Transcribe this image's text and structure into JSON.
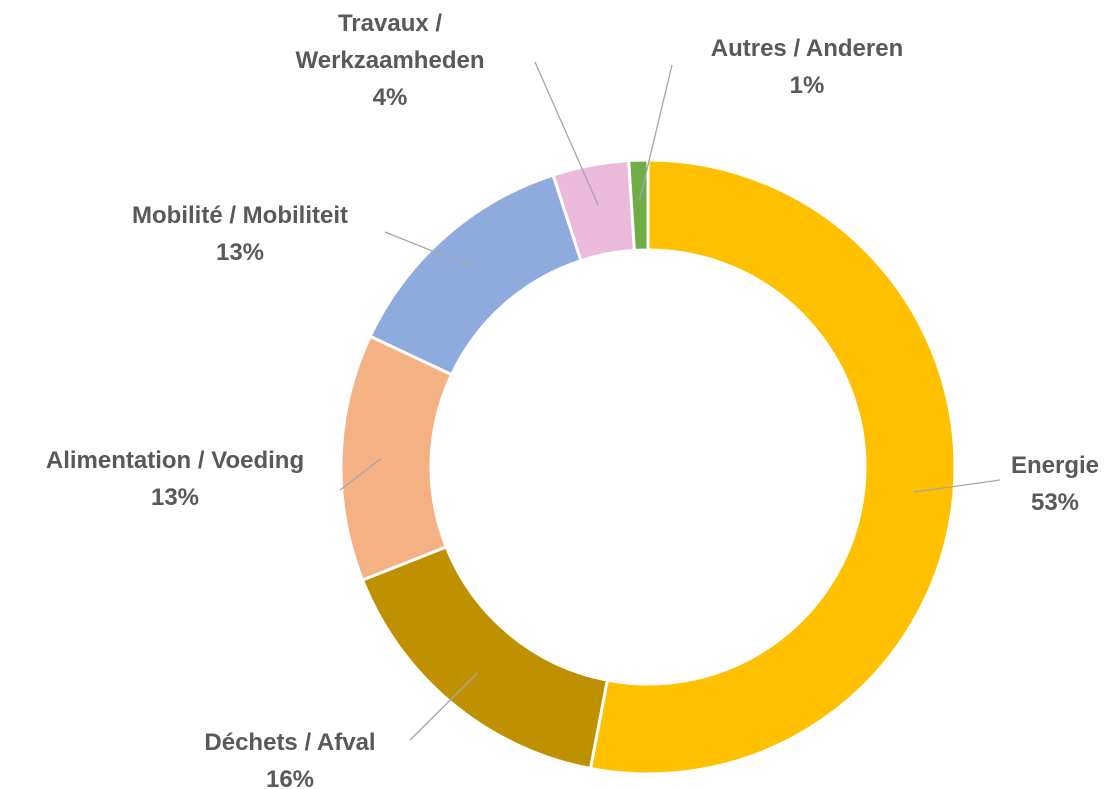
{
  "chart_data": {
    "type": "donut",
    "categories": [
      "Energie",
      "Déchets / Afval",
      "Alimentation / Voeding",
      "Mobilité / Mobiliteit",
      "Travaux / Werkzaamheden",
      "Autres / Anderen"
    ],
    "values": [
      53,
      16,
      13,
      13,
      4,
      1
    ],
    "value_labels": [
      "53%",
      "16%",
      "13%",
      "13%",
      "4%",
      "1%"
    ],
    "colors": [
      "#FFC000",
      "#BF9000",
      "#F4B183",
      "#8FAADC",
      "#EBB9D9",
      "#70AD47"
    ]
  }
}
